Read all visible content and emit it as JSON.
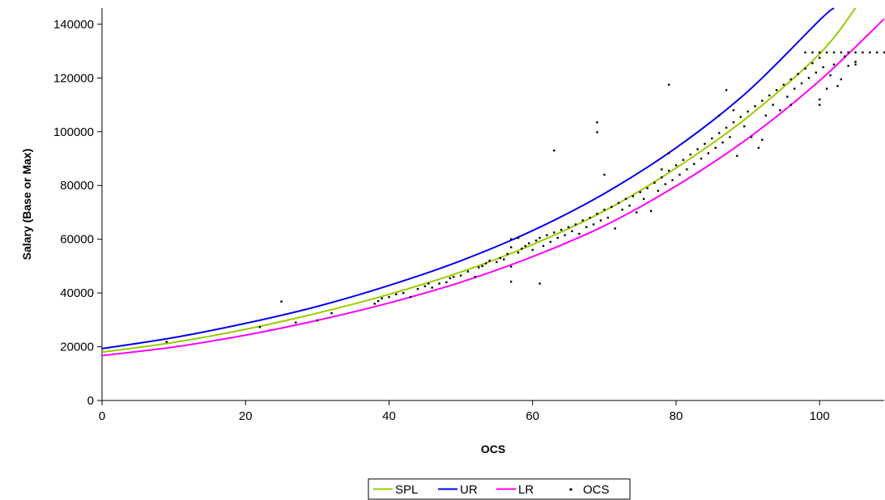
{
  "chart_data": {
    "type": "scatter",
    "xlabel": "OCS",
    "ylabel": "Salary (Base or Max)",
    "xlim": [
      0,
      109
    ],
    "ylim": [
      0,
      146000
    ],
    "x_ticks": [
      0,
      20,
      40,
      60,
      80,
      100
    ],
    "y_ticks": [
      0,
      20000,
      40000,
      60000,
      80000,
      100000,
      120000,
      140000
    ],
    "grid": false,
    "legend_position": "bottom",
    "legend": [
      "SPL",
      "UR",
      "LR",
      "OCS"
    ],
    "series": [
      {
        "name": "SPL",
        "kind": "line",
        "color": "#99cc00",
        "x": [
          0,
          10,
          20,
          30,
          40,
          50,
          60,
          70,
          80,
          90,
          100,
          105
        ],
        "y": [
          18000,
          21600,
          26500,
          32500,
          39500,
          47800,
          58000,
          70500,
          86500,
          105500,
          129000,
          146000
        ]
      },
      {
        "name": "UR",
        "kind": "line",
        "color": "#0000ee",
        "x": [
          0,
          10,
          20,
          30,
          40,
          50,
          60,
          70,
          80,
          90,
          100,
          102
        ],
        "y": [
          19300,
          23400,
          28700,
          35000,
          42800,
          52000,
          63200,
          77000,
          94000,
          115000,
          141500,
          146000
        ]
      },
      {
        "name": "LR",
        "kind": "line",
        "color": "#ff00ff",
        "x": [
          0,
          10,
          20,
          30,
          40,
          50,
          60,
          70,
          80,
          90,
          100,
          109
        ],
        "y": [
          16700,
          19900,
          24300,
          29800,
          36300,
          44000,
          53500,
          65000,
          79800,
          97500,
          119000,
          142000
        ]
      },
      {
        "name": "OCS",
        "kind": "scatter",
        "color": "#000000",
        "points": [
          [
            9,
            21800
          ],
          [
            22,
            27300
          ],
          [
            25,
            36800
          ],
          [
            27,
            29000
          ],
          [
            30,
            29800
          ],
          [
            32,
            32500
          ],
          [
            38,
            36000
          ],
          [
            38.5,
            37000
          ],
          [
            39,
            38000
          ],
          [
            40,
            38500
          ],
          [
            41,
            39500
          ],
          [
            42,
            40000
          ],
          [
            43,
            38500
          ],
          [
            44,
            41500
          ],
          [
            45,
            42500
          ],
          [
            45.5,
            43500
          ],
          [
            46,
            42000
          ],
          [
            47,
            43500
          ],
          [
            48,
            44000
          ],
          [
            48.5,
            45500
          ],
          [
            49,
            46000
          ],
          [
            50,
            46500
          ],
          [
            51,
            48000
          ],
          [
            52,
            46000
          ],
          [
            52.5,
            49500
          ],
          [
            53,
            50000
          ],
          [
            53.5,
            51000
          ],
          [
            54,
            52000
          ],
          [
            55,
            51500
          ],
          [
            55.5,
            53000
          ],
          [
            56,
            52500
          ],
          [
            56.5,
            54500
          ],
          [
            57,
            57000
          ],
          [
            57,
            60000
          ],
          [
            57,
            49800
          ],
          [
            57,
            44200
          ],
          [
            58,
            55000
          ],
          [
            58,
            60500
          ],
          [
            58.5,
            56500
          ],
          [
            59,
            57500
          ],
          [
            59.5,
            58500
          ],
          [
            60,
            56000
          ],
          [
            60.5,
            59500
          ],
          [
            61,
            43500
          ],
          [
            61,
            60500
          ],
          [
            61.5,
            57500
          ],
          [
            62,
            61500
          ],
          [
            62.5,
            59000
          ],
          [
            63,
            93000
          ],
          [
            63,
            62500
          ],
          [
            63.5,
            60500
          ],
          [
            64,
            63500
          ],
          [
            64.5,
            61500
          ],
          [
            65,
            64500
          ],
          [
            65.5,
            63000
          ],
          [
            66,
            65500
          ],
          [
            66.5,
            62000
          ],
          [
            67,
            67000
          ],
          [
            67.5,
            64500
          ],
          [
            68,
            68000
          ],
          [
            68.5,
            65500
          ],
          [
            69,
            103500
          ],
          [
            69,
            99800
          ],
          [
            69,
            69500
          ],
          [
            69.5,
            67000
          ],
          [
            70,
            84000
          ],
          [
            70,
            71000
          ],
          [
            70.5,
            68000
          ],
          [
            71,
            72000
          ],
          [
            71.5,
            64000
          ],
          [
            72,
            73500
          ],
          [
            72.5,
            71000
          ],
          [
            73,
            75000
          ],
          [
            73.5,
            72500
          ],
          [
            74,
            76000
          ],
          [
            74.5,
            70000
          ],
          [
            75,
            77500
          ],
          [
            75.5,
            75000
          ],
          [
            76,
            79000
          ],
          [
            76.5,
            70500
          ],
          [
            77,
            81000
          ],
          [
            77.5,
            78000
          ],
          [
            78,
            83000
          ],
          [
            78,
            86000
          ],
          [
            78.5,
            80500
          ],
          [
            79,
            117500
          ],
          [
            79,
            92000
          ],
          [
            79,
            85500
          ],
          [
            79.5,
            82000
          ],
          [
            80,
            87500
          ],
          [
            80.5,
            84000
          ],
          [
            81,
            89500
          ],
          [
            81.5,
            86000
          ],
          [
            82,
            91500
          ],
          [
            82.5,
            88000
          ],
          [
            83,
            93500
          ],
          [
            83.5,
            90000
          ],
          [
            84,
            95500
          ],
          [
            84.5,
            92000
          ],
          [
            85,
            97500
          ],
          [
            85.5,
            94000
          ],
          [
            86,
            99500
          ],
          [
            86,
            106000
          ],
          [
            86.5,
            96000
          ],
          [
            87,
            115500
          ],
          [
            87,
            101500
          ],
          [
            87.5,
            98000
          ],
          [
            88,
            103500
          ],
          [
            88,
            108000
          ],
          [
            88.5,
            91000
          ],
          [
            89,
            105500
          ],
          [
            89.5,
            102000
          ],
          [
            90,
            107500
          ],
          [
            90.5,
            98000
          ],
          [
            91,
            109500
          ],
          [
            91.5,
            94000
          ],
          [
            92,
            111500
          ],
          [
            92,
            97000
          ],
          [
            92.5,
            106000
          ],
          [
            93,
            113500
          ],
          [
            93.5,
            110000
          ],
          [
            94,
            115500
          ],
          [
            94.5,
            108000
          ],
          [
            95,
            117500
          ],
          [
            95.5,
            113000
          ],
          [
            96,
            119500
          ],
          [
            96,
            110000
          ],
          [
            96.5,
            116000
          ],
          [
            97,
            121500
          ],
          [
            97.5,
            118000
          ],
          [
            98,
            123500
          ],
          [
            98,
            129500
          ],
          [
            98.5,
            120000
          ],
          [
            99,
            125500
          ],
          [
            99,
            129500
          ],
          [
            99.5,
            122000
          ],
          [
            100,
            127500
          ],
          [
            100,
            129500
          ],
          [
            100,
            112000
          ],
          [
            100,
            110000
          ],
          [
            100.5,
            124000
          ],
          [
            101,
            129500
          ],
          [
            101,
            116000
          ],
          [
            101.5,
            121000
          ],
          [
            102,
            129500
          ],
          [
            102,
            125000
          ],
          [
            102.5,
            117000
          ],
          [
            103,
            129500
          ],
          [
            103,
            119500
          ],
          [
            103.5,
            128000
          ],
          [
            104,
            129500
          ],
          [
            104,
            124500
          ],
          [
            105,
            129500
          ],
          [
            105,
            126000
          ],
          [
            105,
            125000
          ],
          [
            106,
            129500
          ],
          [
            107,
            129500
          ],
          [
            108,
            129500
          ],
          [
            109,
            129500
          ]
        ]
      }
    ]
  }
}
